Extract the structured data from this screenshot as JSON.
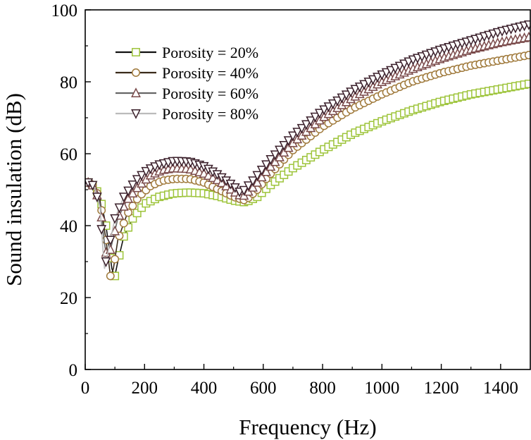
{
  "chart_data": {
    "type": "line",
    "title": "",
    "xlabel": "Frequency (Hz)",
    "ylabel": "Sound insulation (dB)",
    "xlim": [
      0,
      1500
    ],
    "ylim": [
      0,
      100
    ],
    "xticks": [
      0,
      200,
      400,
      600,
      800,
      1000,
      1200,
      1400
    ],
    "yticks": [
      0,
      20,
      40,
      60,
      80,
      100
    ],
    "grid": false,
    "legend_position": "top-left",
    "series": [
      {
        "name": "Porosity = 20%",
        "line_color": "#111111",
        "marker_color": "#9dc43a",
        "marker": "square",
        "points": [
          [
            10,
            52
          ],
          [
            30,
            51
          ],
          [
            50,
            48
          ],
          [
            70,
            40
          ],
          [
            90,
            28
          ],
          [
            100,
            26
          ],
          [
            110,
            30
          ],
          [
            130,
            37
          ],
          [
            160,
            42
          ],
          [
            200,
            46
          ],
          [
            250,
            48
          ],
          [
            300,
            49
          ],
          [
            350,
            49.2
          ],
          [
            400,
            49
          ],
          [
            450,
            48.2
          ],
          [
            500,
            47
          ],
          [
            540,
            46.5
          ],
          [
            580,
            48
          ],
          [
            620,
            51
          ],
          [
            700,
            56
          ],
          [
            800,
            61
          ],
          [
            900,
            65.5
          ],
          [
            1000,
            69
          ],
          [
            1100,
            72
          ],
          [
            1200,
            74.5
          ],
          [
            1300,
            76.5
          ],
          [
            1400,
            78
          ],
          [
            1500,
            79.5
          ]
        ]
      },
      {
        "name": "Porosity = 40%",
        "line_color": "#3a2a1a",
        "marker_color": "#a07a3c",
        "marker": "circle",
        "points": [
          [
            10,
            52
          ],
          [
            30,
            51
          ],
          [
            50,
            47
          ],
          [
            70,
            36
          ],
          [
            85,
            26
          ],
          [
            95,
            28
          ],
          [
            110,
            36
          ],
          [
            140,
            43
          ],
          [
            180,
            48
          ],
          [
            220,
            51
          ],
          [
            260,
            52.5
          ],
          [
            300,
            53
          ],
          [
            350,
            53
          ],
          [
            400,
            52
          ],
          [
            450,
            50
          ],
          [
            500,
            48
          ],
          [
            540,
            47
          ],
          [
            580,
            50
          ],
          [
            620,
            54
          ],
          [
            700,
            61
          ],
          [
            800,
            67.5
          ],
          [
            900,
            72.5
          ],
          [
            1000,
            76.5
          ],
          [
            1100,
            80
          ],
          [
            1200,
            82.5
          ],
          [
            1300,
            84.5
          ],
          [
            1400,
            86
          ],
          [
            1500,
            87.5
          ]
        ]
      },
      {
        "name": "Porosity = 60%",
        "line_color": "#666666",
        "marker_color": "#7a4a4a",
        "marker": "triangle-up",
        "points": [
          [
            10,
            52
          ],
          [
            30,
            51
          ],
          [
            50,
            46
          ],
          [
            65,
            35
          ],
          [
            75,
            30
          ],
          [
            90,
            35
          ],
          [
            110,
            42
          ],
          [
            140,
            47
          ],
          [
            180,
            51
          ],
          [
            220,
            54
          ],
          [
            260,
            55.5
          ],
          [
            300,
            56
          ],
          [
            350,
            55.8
          ],
          [
            400,
            54.5
          ],
          [
            450,
            52.5
          ],
          [
            500,
            49.5
          ],
          [
            530,
            48
          ],
          [
            570,
            51
          ],
          [
            620,
            56
          ],
          [
            700,
            63
          ],
          [
            800,
            70
          ],
          [
            900,
            75.5
          ],
          [
            1000,
            80
          ],
          [
            1100,
            83.5
          ],
          [
            1200,
            86.5
          ],
          [
            1300,
            89
          ],
          [
            1400,
            91
          ],
          [
            1500,
            92.5
          ]
        ]
      },
      {
        "name": "Porosity = 80%",
        "line_color": "#bbbbbb",
        "marker_color": "#3a1f2a",
        "marker": "triangle-down",
        "points": [
          [
            10,
            52
          ],
          [
            30,
            51
          ],
          [
            50,
            45
          ],
          [
            60,
            33
          ],
          [
            65,
            28
          ],
          [
            80,
            34
          ],
          [
            100,
            42
          ],
          [
            130,
            48
          ],
          [
            170,
            52.5
          ],
          [
            210,
            55.5
          ],
          [
            250,
            57
          ],
          [
            300,
            58
          ],
          [
            350,
            57.8
          ],
          [
            400,
            56.5
          ],
          [
            450,
            54
          ],
          [
            500,
            51
          ],
          [
            525,
            49
          ],
          [
            560,
            52
          ],
          [
            620,
            58
          ],
          [
            700,
            65
          ],
          [
            800,
            72
          ],
          [
            900,
            77.5
          ],
          [
            1000,
            82
          ],
          [
            1100,
            86
          ],
          [
            1200,
            89
          ],
          [
            1300,
            91.5
          ],
          [
            1400,
            94
          ],
          [
            1500,
            96
          ]
        ]
      }
    ]
  }
}
